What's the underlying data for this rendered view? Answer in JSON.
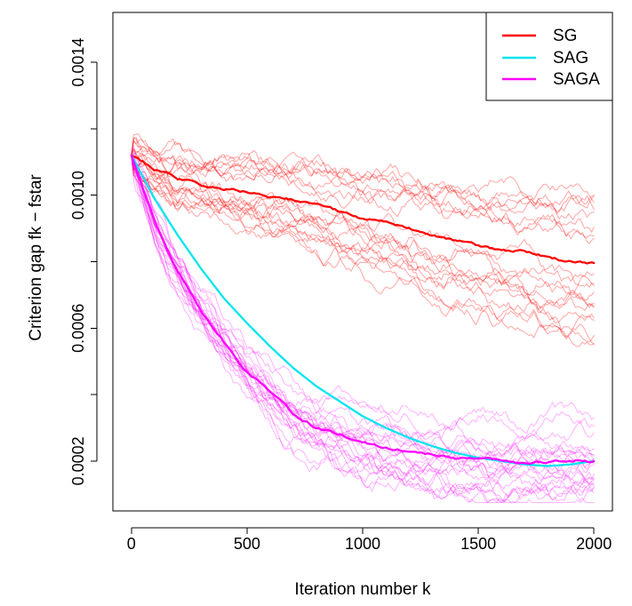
{
  "chart_data": {
    "type": "line",
    "title": "",
    "xlabel": "Iteration number k",
    "ylabel": "Criterion gap fk − fstar",
    "xlim": [
      -80,
      2080
    ],
    "ylim": [
      5e-05,
      0.00155
    ],
    "x_ticks": [
      0,
      500,
      1000,
      1500,
      2000
    ],
    "x_tick_labels": [
      "0",
      "500",
      "1000",
      "1500",
      "2000"
    ],
    "y_ticks": [
      0.0002,
      0.0004,
      0.0006,
      0.0008,
      0.001,
      0.0012,
      0.0014
    ],
    "y_tick_labels": [
      "0.0002",
      "",
      "0.0006",
      "",
      "0.0010",
      "",
      "0.0014"
    ],
    "grid": false,
    "legend_position": "top-right",
    "colors": {
      "SG": "#ff0000",
      "SAG": "#00e5ee",
      "SAGA": "#ff00ff"
    },
    "series": [
      {
        "name": "SG",
        "x": [
          0,
          100,
          200,
          300,
          400,
          500,
          600,
          700,
          800,
          900,
          1000,
          1100,
          1200,
          1300,
          1400,
          1500,
          1600,
          1700,
          1800,
          1900,
          2000
        ],
        "values": [
          0.00112,
          0.00108,
          0.00105,
          0.00103,
          0.00102,
          0.00101,
          0.000995,
          0.000985,
          0.00097,
          0.00095,
          0.00093,
          0.00092,
          0.0009,
          0.00088,
          0.000865,
          0.00085,
          0.000835,
          0.00083,
          0.000815,
          0.0008,
          0.000795
        ]
      },
      {
        "name": "SAG",
        "x": [
          0,
          100,
          200,
          300,
          400,
          500,
          600,
          700,
          800,
          900,
          1000,
          1100,
          1200,
          1300,
          1400,
          1500,
          1600,
          1700,
          1800,
          1900,
          2000
        ],
        "values": [
          0.00112,
          0.00099,
          0.00088,
          0.00078,
          0.00069,
          0.000615,
          0.000545,
          0.00048,
          0.000425,
          0.00038,
          0.000335,
          0.0003,
          0.00027,
          0.000245,
          0.000225,
          0.00021,
          0.0002,
          0.00019,
          0.000185,
          0.00019,
          0.0002
        ]
      },
      {
        "name": "SAGA",
        "x": [
          0,
          100,
          200,
          300,
          400,
          500,
          600,
          700,
          800,
          900,
          1000,
          1100,
          1200,
          1300,
          1400,
          1500,
          1600,
          1700,
          1800,
          1900,
          2000
        ],
        "values": [
          0.00112,
          0.00092,
          0.00077,
          0.00065,
          0.00056,
          0.00047,
          0.00041,
          0.00034,
          0.0003,
          0.00028,
          0.00026,
          0.00024,
          0.00023,
          0.00022,
          0.00021,
          0.000205,
          0.0002,
          0.000195,
          0.0002,
          0.000205,
          0.0002
        ]
      }
    ],
    "run_trace_count": {
      "SG": 20,
      "SAGA": 22
    }
  }
}
